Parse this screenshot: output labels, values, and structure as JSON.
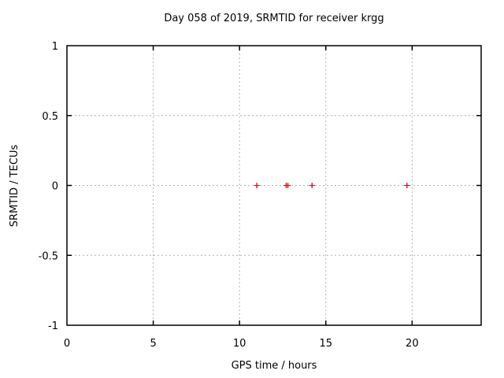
{
  "chart_data": {
    "type": "scatter",
    "title": "Day 058 of 2019, SRMTID for receiver krgg",
    "xlabel": "GPS time / hours",
    "ylabel": "SRMTID / TECUs",
    "xlim": [
      0,
      24
    ],
    "ylim": [
      -1,
      1
    ],
    "xticks": {
      "values": [
        0,
        5,
        10,
        15,
        20
      ],
      "labels": [
        "0",
        "5",
        "10",
        "15",
        "20"
      ]
    },
    "yticks": {
      "values": [
        1,
        0.5,
        0,
        -0.5,
        -1
      ],
      "labels": [
        "1",
        "0.5",
        "0",
        "-0.5",
        "-1"
      ]
    },
    "grid": true,
    "legend_position": "none",
    "series": [
      {
        "name": "SRMTID",
        "marker": "plus",
        "color": "#ff0000",
        "points": [
          {
            "x": 11.0,
            "y": 0.0
          },
          {
            "x": 12.7,
            "y": 0.0
          },
          {
            "x": 12.8,
            "y": 0.0
          },
          {
            "x": 14.2,
            "y": 0.0
          },
          {
            "x": 19.7,
            "y": 0.0
          }
        ]
      }
    ],
    "colors": {
      "background": "#ffffff",
      "border": "#000000",
      "grid": "#b0b0b0",
      "text": "#000000",
      "marker": "#ff0000"
    }
  }
}
